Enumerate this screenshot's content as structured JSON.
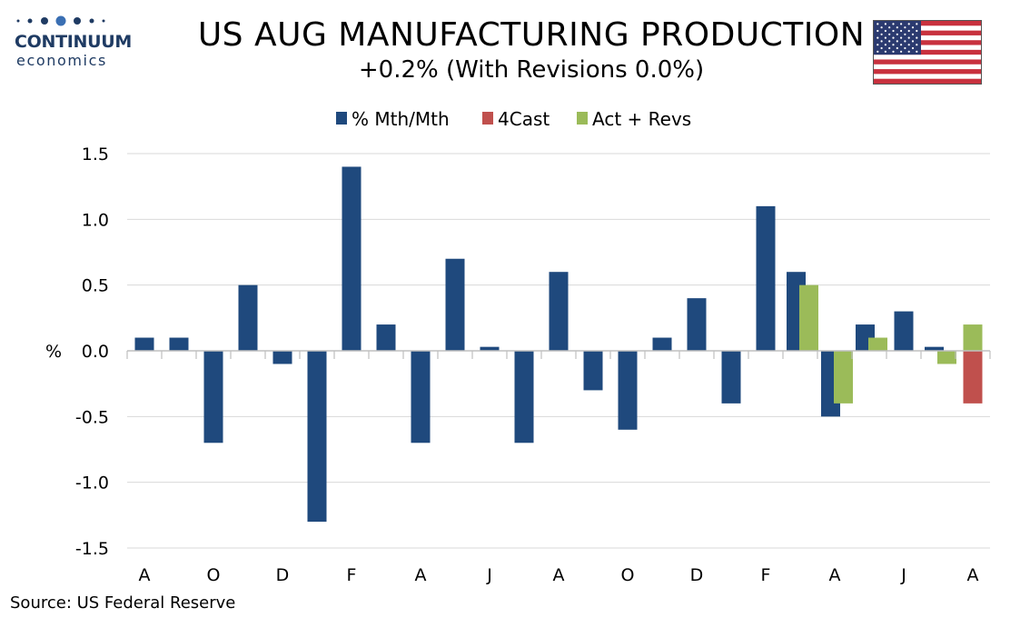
{
  "logo": {
    "word": "CONTINUUM",
    "sub": "economics",
    "color": "#1f3b63"
  },
  "header": {
    "title": "US AUG MANUFACTURING PRODUCTION",
    "subtitle": "+0.2% (With Revisions 0.0%)",
    "flag_icon": "us-flag-icon"
  },
  "source": "Source: US Federal Reserve",
  "chart_data": {
    "type": "bar",
    "ylabel": "%",
    "ylim": [
      -1.5,
      1.5
    ],
    "yticks": [
      1.5,
      1.0,
      0.5,
      0.0,
      -0.5,
      -1.0,
      -1.5
    ],
    "ytick_labels": [
      "1.5",
      "1.0",
      "0.5",
      "0.0",
      "-0.5",
      "-1.0",
      "-1.5"
    ],
    "grid": true,
    "legend_position": "top-center",
    "xtick_labels": [
      "A",
      "O",
      "D",
      "F",
      "A",
      "J",
      "A",
      "O",
      "D",
      "F",
      "A",
      "J",
      "A"
    ],
    "xtick_every": 2,
    "categories_count": 25,
    "series": [
      {
        "name": "% Mth/Mth",
        "color": "#1f497d",
        "values": [
          0.1,
          0.1,
          -0.7,
          0.5,
          -0.1,
          -1.3,
          1.4,
          0.2,
          -0.7,
          0.7,
          0.03,
          -0.7,
          0.6,
          -0.3,
          -0.6,
          0.1,
          0.4,
          -0.4,
          1.1,
          0.6,
          -0.5,
          0.2,
          0.3,
          0.03,
          null
        ]
      },
      {
        "name": "4Cast",
        "color": "#c0504d",
        "values": [
          null,
          null,
          null,
          null,
          null,
          null,
          null,
          null,
          null,
          null,
          null,
          null,
          null,
          null,
          null,
          null,
          null,
          null,
          null,
          null,
          null,
          null,
          null,
          null,
          -0.4
        ]
      },
      {
        "name": "Act + Revs",
        "color": "#9bbb59",
        "values": [
          null,
          null,
          null,
          null,
          null,
          null,
          null,
          null,
          null,
          null,
          null,
          null,
          null,
          null,
          null,
          null,
          null,
          null,
          null,
          0.5,
          -0.4,
          0.1,
          null,
          -0.1,
          0.2
        ]
      }
    ]
  }
}
